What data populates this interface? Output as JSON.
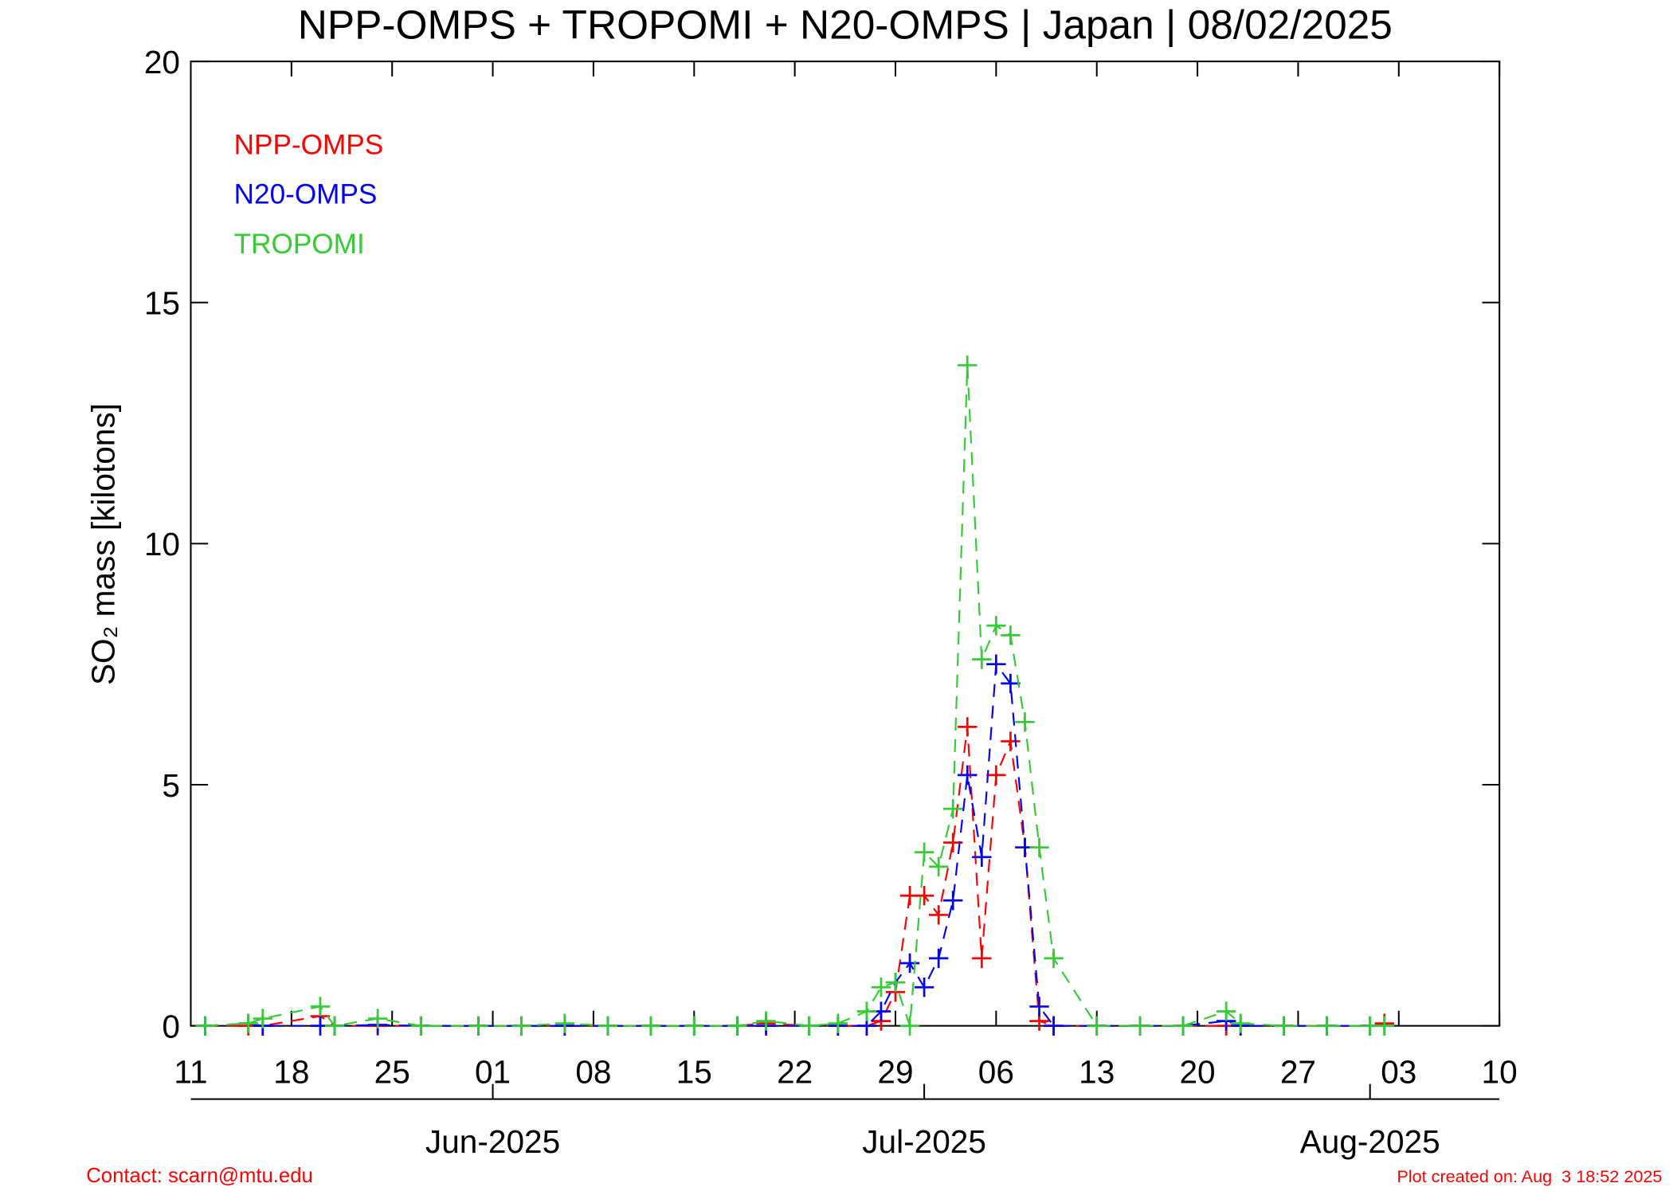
{
  "chart_data": {
    "type": "line",
    "title": "NPP-OMPS + TROPOMI + N20-OMPS | Japan | 08/02/2025",
    "y_label": "SO₂ mass [kilotons]",
    "x": [
      "2025-05-12",
      "2025-05-15",
      "2025-05-16",
      "2025-05-20",
      "2025-05-21",
      "2025-05-24",
      "2025-05-27",
      "2025-05-31",
      "2025-06-03",
      "2025-06-06",
      "2025-06-09",
      "2025-06-12",
      "2025-06-15",
      "2025-06-18",
      "2025-06-20",
      "2025-06-23",
      "2025-06-25",
      "2025-06-27",
      "2025-06-28",
      "2025-06-29",
      "2025-06-30",
      "2025-07-01",
      "2025-07-02",
      "2025-07-03",
      "2025-07-04",
      "2025-07-05",
      "2025-07-06",
      "2025-07-07",
      "2025-07-08",
      "2025-07-09",
      "2025-07-10",
      "2025-07-13",
      "2025-07-16",
      "2025-07-19",
      "2025-07-22",
      "2025-07-23",
      "2025-07-26",
      "2025-07-29",
      "2025-08-01",
      "2025-08-02"
    ],
    "series": [
      {
        "name": "NPP-OMPS",
        "color": "#ff0000",
        "values": [
          0,
          0,
          0,
          0.2,
          0,
          0,
          0,
          0,
          0,
          0,
          0,
          0,
          0,
          0,
          0.05,
          0,
          0,
          0,
          0.1,
          0.7,
          2.7,
          2.7,
          2.3,
          3.8,
          6.2,
          1.4,
          5.2,
          5.9,
          3.7,
          0.1,
          0,
          0,
          0,
          0,
          0,
          0,
          0,
          0,
          0,
          0.05
        ]
      },
      {
        "name": "N20-OMPS",
        "color": "#0000ff",
        "values": [
          0,
          0.05,
          0,
          0,
          0,
          0.02,
          0,
          0,
          0,
          0,
          0,
          0,
          0,
          0,
          0,
          0,
          0,
          0,
          0.3,
          0.9,
          1.3,
          0.8,
          1.4,
          2.6,
          5.2,
          3.5,
          7.5,
          7.1,
          3.7,
          0.4,
          0,
          0,
          0,
          0,
          0.1,
          0,
          0,
          0,
          0,
          0
        ]
      },
      {
        "name": "TROPOMI",
        "color": "#33cc33",
        "values": [
          0,
          0.05,
          0.15,
          0.4,
          0,
          0.15,
          0,
          0,
          0,
          0.05,
          0,
          0,
          0,
          0,
          0.1,
          0,
          0.05,
          0.3,
          0.8,
          0.9,
          0,
          3.6,
          3.3,
          4.5,
          13.7,
          7.6,
          8.3,
          8.1,
          6.3,
          3.7,
          1.4,
          0,
          0,
          0,
          0.3,
          0.05,
          0,
          0,
          0,
          0
        ]
      }
    ],
    "xlim": [
      "2025-05-11",
      "2025-08-10"
    ],
    "xticks": [
      {
        "value": "2025-05-11",
        "label": "11"
      },
      {
        "value": "2025-05-18",
        "label": "18"
      },
      {
        "value": "2025-05-25",
        "label": "25"
      },
      {
        "value": "2025-06-01",
        "label": "01"
      },
      {
        "value": "2025-06-08",
        "label": "08"
      },
      {
        "value": "2025-06-15",
        "label": "15"
      },
      {
        "value": "2025-06-22",
        "label": "22"
      },
      {
        "value": "2025-06-29",
        "label": "29"
      },
      {
        "value": "2025-07-06",
        "label": "06"
      },
      {
        "value": "2025-07-13",
        "label": "13"
      },
      {
        "value": "2025-07-20",
        "label": "20"
      },
      {
        "value": "2025-07-27",
        "label": "27"
      },
      {
        "value": "2025-08-03",
        "label": "03"
      },
      {
        "value": "2025-08-10",
        "label": "10"
      }
    ],
    "month_ticks": [
      {
        "value": "2025-06-01",
        "label": "Jun-2025"
      },
      {
        "value": "2025-07-01",
        "label": "Jul-2025"
      },
      {
        "value": "2025-08-01",
        "label": "Aug-2025"
      }
    ],
    "ylim": [
      0,
      20
    ],
    "yticks": [
      0,
      5,
      10,
      15,
      20
    ],
    "legend": "top-left",
    "footer_left": "Contact: scarn@mtu.edu",
    "footer_right": "Plot created on: Aug  3 18:52 2025"
  }
}
